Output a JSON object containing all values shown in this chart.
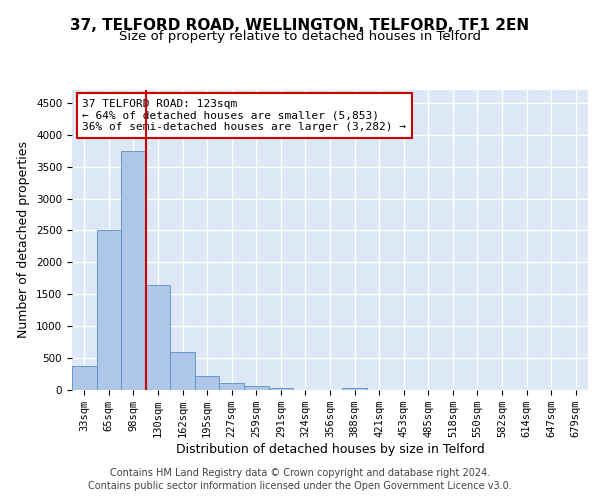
{
  "title": "37, TELFORD ROAD, WELLINGTON, TELFORD, TF1 2EN",
  "subtitle": "Size of property relative to detached houses in Telford",
  "xlabel": "Distribution of detached houses by size in Telford",
  "ylabel": "Number of detached properties",
  "categories": [
    "33sqm",
    "65sqm",
    "98sqm",
    "130sqm",
    "162sqm",
    "195sqm",
    "227sqm",
    "259sqm",
    "291sqm",
    "324sqm",
    "356sqm",
    "388sqm",
    "421sqm",
    "453sqm",
    "485sqm",
    "518sqm",
    "550sqm",
    "582sqm",
    "614sqm",
    "647sqm",
    "679sqm"
  ],
  "values": [
    370,
    2500,
    3750,
    1640,
    590,
    225,
    105,
    65,
    35,
    0,
    0,
    35,
    0,
    0,
    0,
    0,
    0,
    0,
    0,
    0,
    0
  ],
  "bar_color": "#aec6e8",
  "bar_edge_color": "#5a8fc4",
  "vline_position": 2.5,
  "vline_color": "#cc0000",
  "annotation_text": "37 TELFORD ROAD: 123sqm\n← 64% of detached houses are smaller (5,853)\n36% of semi-detached houses are larger (3,282) →",
  "annotation_box_color": "white",
  "annotation_box_edge": "#cc0000",
  "ylim": [
    0,
    4700
  ],
  "yticks": [
    0,
    500,
    1000,
    1500,
    2000,
    2500,
    3000,
    3500,
    4000,
    4500
  ],
  "bg_color": "#dce8f5",
  "grid_color": "white",
  "footer_line1": "Contains HM Land Registry data © Crown copyright and database right 2024.",
  "footer_line2": "Contains public sector information licensed under the Open Government Licence v3.0.",
  "title_fontsize": 11,
  "subtitle_fontsize": 9.5,
  "axis_label_fontsize": 9,
  "tick_fontsize": 7.5,
  "annotation_fontsize": 8,
  "footer_fontsize": 7
}
